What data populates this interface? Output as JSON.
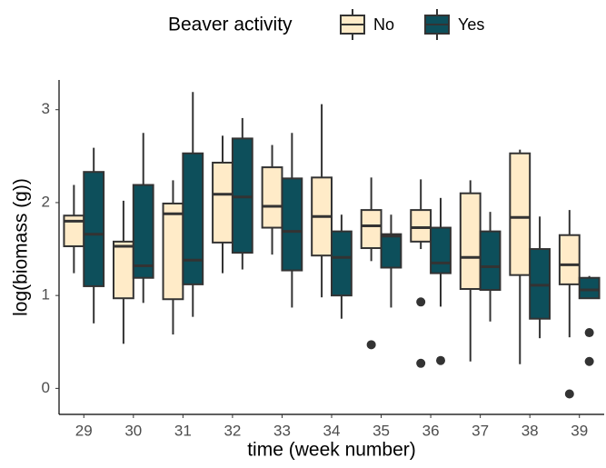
{
  "chart_data": {
    "type": "boxplot",
    "x_label": "time (week number)",
    "y_label": "log(biomass (g))",
    "legend_title": "Beaver activity",
    "legend_position": "top",
    "categories": [
      "29",
      "30",
      "31",
      "32",
      "33",
      "34",
      "35",
      "36",
      "37",
      "38",
      "39"
    ],
    "ylim": [
      -0.28,
      3.32
    ],
    "yticks": [
      0,
      1,
      2,
      3
    ],
    "series": [
      {
        "name": "No",
        "color": "#ffebc8",
        "boxes": [
          {
            "whislo": 1.24,
            "q1": 1.53,
            "med": 1.8,
            "q3": 1.86,
            "whishi": 2.19,
            "fliers": []
          },
          {
            "whislo": 0.48,
            "q1": 0.97,
            "med": 1.53,
            "q3": 1.58,
            "whishi": 2.02,
            "fliers": []
          },
          {
            "whislo": 0.58,
            "q1": 0.96,
            "med": 1.88,
            "q3": 1.99,
            "whishi": 2.24,
            "fliers": []
          },
          {
            "whislo": 1.24,
            "q1": 1.57,
            "med": 2.09,
            "q3": 2.43,
            "whishi": 2.72,
            "fliers": []
          },
          {
            "whislo": 1.44,
            "q1": 1.73,
            "med": 1.96,
            "q3": 2.38,
            "whishi": 2.62,
            "fliers": []
          },
          {
            "whislo": 0.98,
            "q1": 1.43,
            "med": 1.85,
            "q3": 2.27,
            "whishi": 3.06,
            "fliers": []
          },
          {
            "whislo": 1.37,
            "q1": 1.51,
            "med": 1.75,
            "q3": 1.92,
            "whishi": 2.27,
            "fliers": [
              0.47
            ]
          },
          {
            "whislo": 1.5,
            "q1": 1.58,
            "med": 1.73,
            "q3": 1.92,
            "whishi": 2.25,
            "fliers": [
              0.93,
              0.27
            ]
          },
          {
            "whislo": 0.29,
            "q1": 1.07,
            "med": 1.41,
            "q3": 2.1,
            "whishi": 2.24,
            "fliers": []
          },
          {
            "whislo": 0.26,
            "q1": 1.22,
            "med": 1.84,
            "q3": 2.53,
            "whishi": 2.57,
            "fliers": []
          },
          {
            "whislo": 0.55,
            "q1": 1.12,
            "med": 1.33,
            "q3": 1.65,
            "whishi": 1.92,
            "fliers": [
              -0.06
            ]
          }
        ]
      },
      {
        "name": "Yes",
        "color": "#0d4f5b",
        "boxes": [
          {
            "whislo": 0.7,
            "q1": 1.1,
            "med": 1.66,
            "q3": 2.33,
            "whishi": 2.59,
            "fliers": []
          },
          {
            "whislo": 0.92,
            "q1": 1.19,
            "med": 1.32,
            "q3": 2.19,
            "whishi": 2.75,
            "fliers": []
          },
          {
            "whislo": 0.77,
            "q1": 1.12,
            "med": 1.38,
            "q3": 2.53,
            "whishi": 3.19,
            "fliers": []
          },
          {
            "whislo": 1.28,
            "q1": 1.46,
            "med": 2.06,
            "q3": 2.69,
            "whishi": 2.91,
            "fliers": []
          },
          {
            "whislo": 0.87,
            "q1": 1.27,
            "med": 1.69,
            "q3": 2.26,
            "whishi": 2.75,
            "fliers": []
          },
          {
            "whislo": 0.75,
            "q1": 1.0,
            "med": 1.41,
            "q3": 1.69,
            "whishi": 1.87,
            "fliers": []
          },
          {
            "whislo": 0.87,
            "q1": 1.3,
            "med": 1.64,
            "q3": 1.66,
            "whishi": 1.87,
            "fliers": []
          },
          {
            "whislo": 0.88,
            "q1": 1.24,
            "med": 1.35,
            "q3": 1.73,
            "whishi": 2.05,
            "fliers": [
              0.3
            ]
          },
          {
            "whislo": 0.72,
            "q1": 1.06,
            "med": 1.31,
            "q3": 1.69,
            "whishi": 1.9,
            "fliers": []
          },
          {
            "whislo": 0.54,
            "q1": 0.75,
            "med": 1.11,
            "q3": 1.5,
            "whishi": 1.85,
            "fliers": []
          },
          {
            "whislo": 0.97,
            "q1": 0.97,
            "med": 1.06,
            "q3": 1.19,
            "whishi": 1.21,
            "fliers": [
              0.6,
              0.29
            ]
          }
        ]
      }
    ]
  }
}
